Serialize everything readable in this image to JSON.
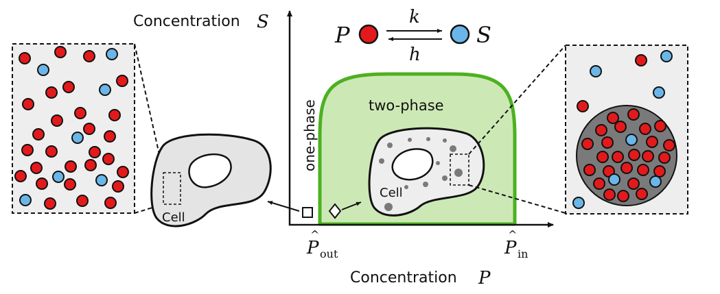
{
  "axes": {
    "y_label": "Concentration",
    "y_symbol": "S",
    "x_label": "Concentration",
    "x_symbol": "P"
  },
  "regions": {
    "one_phase": "one-phase",
    "two_phase": "two-phase"
  },
  "reaction": {
    "left_species": "P",
    "right_species": "S",
    "forward_rate": "k",
    "backward_rate": "h"
  },
  "ticks": {
    "p_out_base": "P",
    "p_out_sub": "out",
    "p_in_base": "P",
    "p_in_sub": "in",
    "hat": "^"
  },
  "cells": {
    "left_label": "Cell",
    "center_label": "Cell"
  },
  "colors": {
    "species_P": "#e31a1c",
    "species_S": "#6bb6e8",
    "two_phase_fill": "#cce9b5",
    "two_phase_border": "#4db021",
    "cell_fill": "#e4e4e4",
    "panel_fill": "#eeeeee",
    "droplet_fill": "#7a7a7a"
  }
}
